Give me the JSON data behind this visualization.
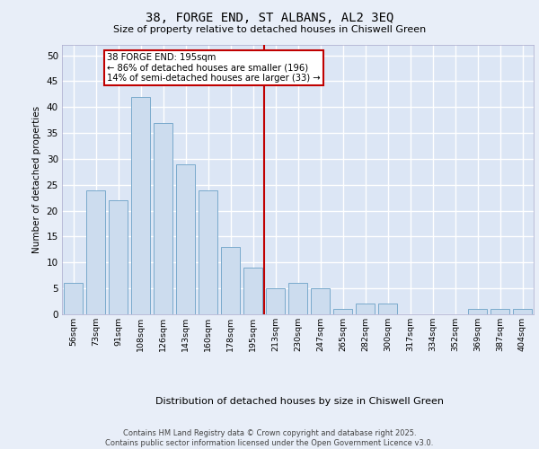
{
  "title_line1": "38, FORGE END, ST ALBANS, AL2 3EQ",
  "title_line2": "Size of property relative to detached houses in Chiswell Green",
  "xlabel": "Distribution of detached houses by size in Chiswell Green",
  "ylabel": "Number of detached properties",
  "categories": [
    "56sqm",
    "73sqm",
    "91sqm",
    "108sqm",
    "126sqm",
    "143sqm",
    "160sqm",
    "178sqm",
    "195sqm",
    "213sqm",
    "230sqm",
    "247sqm",
    "265sqm",
    "282sqm",
    "300sqm",
    "317sqm",
    "334sqm",
    "352sqm",
    "369sqm",
    "387sqm",
    "404sqm"
  ],
  "values": [
    6,
    24,
    22,
    42,
    37,
    29,
    24,
    13,
    9,
    5,
    6,
    5,
    1,
    2,
    2,
    0,
    0,
    0,
    1,
    1,
    1
  ],
  "bar_color": "#ccdcee",
  "bar_edge_color": "#7aaacc",
  "vline_color": "#c00000",
  "annotation_text": "38 FORGE END: 195sqm\n← 86% of detached houses are smaller (196)\n14% of semi-detached houses are larger (33) →",
  "ylim": [
    0,
    52
  ],
  "yticks": [
    0,
    5,
    10,
    15,
    20,
    25,
    30,
    35,
    40,
    45,
    50
  ],
  "background_color": "#dce6f5",
  "grid_color": "#ffffff",
  "footer_line1": "Contains HM Land Registry data © Crown copyright and database right 2025.",
  "footer_line2": "Contains public sector information licensed under the Open Government Licence v3.0.",
  "fig_bg_color": "#e8eef8"
}
